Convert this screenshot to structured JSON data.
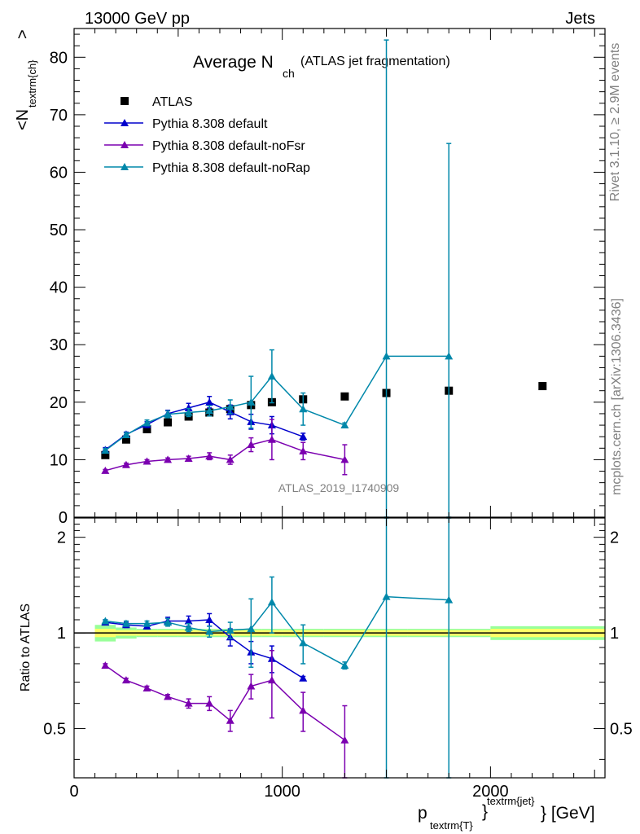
{
  "header": {
    "energy_label": "13000 GeV pp",
    "category_label": "Jets"
  },
  "side_labels": {
    "rivet": "Rivet 3.1.10, ≥ 2.9M events",
    "mcplots": "mcplots.cern.ch [arXiv:1306.3436]"
  },
  "chart_data": [
    {
      "type": "scatter",
      "panel": "main",
      "title_main": "Average N",
      "title_sub": "ch",
      "title_suffix": "(ATLAS jet fragmentation)",
      "ylabel_main": "<N",
      "ylabel_sub": "textrm{ch}",
      "ylabel_close": ">",
      "analysis_label": "ATLAS_2019_I1740909",
      "xlim": [
        0,
        2550
      ],
      "ylim": [
        0,
        85
      ],
      "yticks": [
        0,
        10,
        20,
        30,
        40,
        50,
        60,
        70,
        80
      ],
      "ytick_labels": [
        "0",
        "10",
        "20",
        "30",
        "40",
        "50",
        "60",
        "70",
        "80"
      ],
      "legend_position": "top-left",
      "legend": [
        "ATLAS",
        "Pythia 8.308 default",
        "Pythia 8.308 default-noFsr",
        "Pythia 8.308 default-noRap"
      ],
      "series": [
        {
          "name": "ATLAS",
          "color": "#000000",
          "marker": "square",
          "x": [
            150,
            250,
            350,
            450,
            550,
            650,
            750,
            850,
            950,
            1100,
            1300,
            1500,
            1800,
            2250
          ],
          "y": [
            10.8,
            13.5,
            15.3,
            16.5,
            17.5,
            18.2,
            18.8,
            19.5,
            20.0,
            20.5,
            21.0,
            21.6,
            22.0,
            22.8
          ],
          "err": [
            0,
            0,
            0,
            0,
            0,
            0,
            0,
            0,
            0,
            0,
            0,
            0,
            0,
            0
          ]
        },
        {
          "name": "Pythia 8.308 default",
          "color": "#0000cc",
          "marker": "triangle",
          "x": [
            150,
            250,
            350,
            450,
            550,
            650,
            750,
            850,
            950,
            1100
          ],
          "y": [
            11.7,
            14.4,
            16.1,
            18.0,
            19.0,
            20.0,
            18.3,
            16.6,
            16.0,
            14.0
          ],
          "err": [
            0.4,
            0.4,
            0.5,
            0.6,
            0.8,
            1.0,
            1.2,
            1.3,
            1.5,
            0.6
          ]
        },
        {
          "name": "Pythia 8.308 default-noFsr",
          "color": "#7b00b0",
          "marker": "triangle",
          "x": [
            150,
            250,
            350,
            450,
            550,
            650,
            750,
            850,
            950,
            1100,
            1300
          ],
          "y": [
            8.1,
            9.1,
            9.7,
            10.0,
            10.2,
            10.6,
            10.0,
            12.6,
            13.5,
            11.5,
            10.0
          ],
          "err": [
            0.2,
            0.3,
            0.3,
            0.3,
            0.4,
            0.6,
            0.8,
            1.2,
            3.5,
            1.5,
            2.6
          ]
        },
        {
          "name": "Pythia 8.308 default-noRap",
          "color": "#0088aa",
          "marker": "triangle",
          "x": [
            150,
            250,
            350,
            450,
            550,
            650,
            750,
            850,
            950,
            1100,
            1300,
            1500,
            1800
          ],
          "y": [
            11.6,
            14.3,
            16.4,
            17.9,
            18.2,
            18.5,
            19.2,
            20.0,
            24.5,
            18.8,
            16.0,
            28.0,
            28.0
          ],
          "err": [
            0.3,
            0.4,
            0.5,
            0.6,
            0.7,
            0.9,
            1.2,
            4.5,
            4.6,
            2.8,
            0.4,
            55,
            37
          ]
        }
      ]
    },
    {
      "type": "scatter",
      "panel": "ratio",
      "ylabel": "Ratio to ATLAS",
      "xlabel_main": "p",
      "xlabel_sub": "textrm{T}",
      "xlabel_close": "}",
      "xlabel_sup": "textrm{jet}",
      "xlabel_unit": "} [GeV]",
      "xlim": [
        0,
        2550
      ],
      "ylim": [
        0.35,
        2.3
      ],
      "log_y": true,
      "yticks": [
        0.5,
        1,
        2
      ],
      "ytick_labels": [
        "0.5",
        "1",
        "2"
      ],
      "xticks": [
        0,
        1000,
        2000
      ],
      "xtick_labels": [
        "0",
        "1000",
        "2000"
      ],
      "reference_band": {
        "color_inner": "#ffff66",
        "color_outer": "#99ff99",
        "x": [
          100,
          200,
          300,
          400,
          500,
          600,
          700,
          800,
          900,
          1000,
          1200,
          1400,
          1600,
          2000,
          2550
        ],
        "inner": [
          0.03,
          0.02,
          0.02,
          0.02,
          0.02,
          0.02,
          0.02,
          0.02,
          0.02,
          0.02,
          0.02,
          0.02,
          0.02,
          0.03
        ],
        "outer": [
          0.06,
          0.04,
          0.03,
          0.03,
          0.03,
          0.03,
          0.03,
          0.03,
          0.03,
          0.03,
          0.03,
          0.03,
          0.03,
          0.05
        ]
      },
      "series": [
        {
          "name": "Pythia 8.308 default",
          "color": "#0000cc",
          "x": [
            150,
            250,
            350,
            450,
            550,
            650,
            750,
            850,
            950,
            1100
          ],
          "y": [
            1.08,
            1.06,
            1.05,
            1.09,
            1.09,
            1.1,
            0.97,
            0.87,
            0.83,
            0.72
          ],
          "err": [
            0.02,
            0.02,
            0.02,
            0.03,
            0.04,
            0.05,
            0.06,
            0.07,
            0.08,
            0.01
          ]
        },
        {
          "name": "Pythia 8.308 default-noFsr",
          "color": "#7b00b0",
          "x": [
            150,
            250,
            350,
            450,
            550,
            650,
            750,
            850,
            950,
            1100,
            1300
          ],
          "y": [
            0.79,
            0.71,
            0.67,
            0.63,
            0.6,
            0.6,
            0.53,
            0.68,
            0.71,
            0.57,
            0.46
          ],
          "err": [
            0.01,
            0.01,
            0.01,
            0.01,
            0.02,
            0.03,
            0.04,
            0.06,
            0.17,
            0.08,
            0.13
          ]
        },
        {
          "name": "Pythia 8.308 default-noRap",
          "color": "#0088aa",
          "x": [
            150,
            250,
            350,
            450,
            550,
            650,
            750,
            850,
            950,
            1100,
            1300,
            1500,
            1800
          ],
          "y": [
            1.09,
            1.07,
            1.07,
            1.08,
            1.04,
            1.01,
            1.02,
            1.03,
            1.25,
            0.93,
            0.79,
            1.3,
            1.27
          ],
          "err": [
            0.01,
            0.02,
            0.02,
            0.03,
            0.03,
            0.04,
            0.06,
            0.25,
            0.25,
            0.13,
            0.02,
            2.2,
            1.7
          ]
        }
      ]
    }
  ]
}
